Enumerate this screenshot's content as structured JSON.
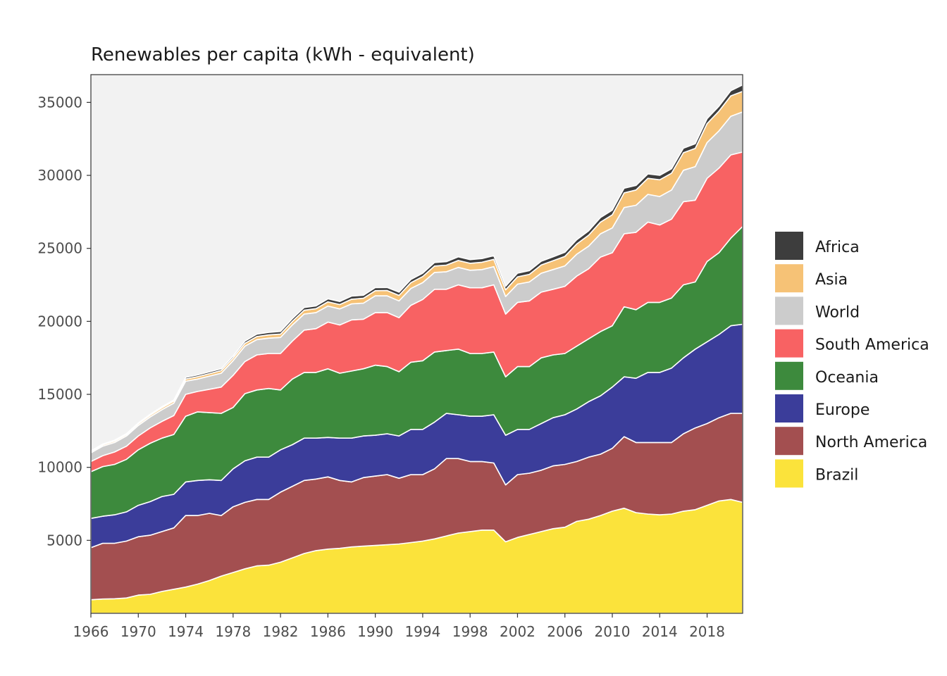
{
  "chart_data": {
    "type": "area",
    "stacked": true,
    "title": "Renewables per capita (kWh - equivalent)",
    "xlabel": "",
    "ylabel": "",
    "xlim": [
      1966,
      2021
    ],
    "ylim": [
      0,
      36900
    ],
    "x_ticks": [
      1966,
      1970,
      1974,
      1978,
      1982,
      1986,
      1990,
      1994,
      1998,
      2002,
      2006,
      2010,
      2014,
      2018
    ],
    "y_ticks": [
      5000,
      10000,
      15000,
      20000,
      25000,
      30000,
      35000
    ],
    "grid": false,
    "panel_background": "#f2f2f2",
    "legend_position": "right",
    "x": [
      1966,
      1967,
      1968,
      1969,
      1970,
      1971,
      1972,
      1973,
      1974,
      1975,
      1976,
      1977,
      1978,
      1979,
      1980,
      1981,
      1982,
      1983,
      1984,
      1985,
      1986,
      1987,
      1988,
      1989,
      1990,
      1991,
      1992,
      1993,
      1994,
      1995,
      1996,
      1997,
      1998,
      1999,
      2000,
      2001,
      2002,
      2003,
      2004,
      2005,
      2006,
      2007,
      2008,
      2009,
      2010,
      2011,
      2012,
      2013,
      2014,
      2015,
      2016,
      2017,
      2018,
      2019,
      2020,
      2021
    ],
    "series": [
      {
        "name": "Brazil",
        "color": "#fbe33b",
        "values": [
          930,
          980,
          1000,
          1050,
          1250,
          1300,
          1500,
          1650,
          1800,
          2000,
          2250,
          2550,
          2800,
          3050,
          3250,
          3300,
          3500,
          3800,
          4100,
          4300,
          4400,
          4450,
          4550,
          4600,
          4650,
          4700,
          4750,
          4850,
          4950,
          5100,
          5300,
          5500,
          5600,
          5700,
          5700,
          4900,
          5200,
          5400,
          5600,
          5800,
          5900,
          6300,
          6450,
          6700,
          7000,
          7200,
          6900,
          6800,
          6750,
          6800,
          7000,
          7100,
          7400,
          7700,
          7800,
          7600
        ]
      },
      {
        "name": "North America",
        "color": "#a34f50",
        "values": [
          3570,
          3820,
          3800,
          3900,
          4000,
          4050,
          4100,
          4200,
          4900,
          4700,
          4600,
          4150,
          4500,
          4550,
          4550,
          4500,
          4800,
          4900,
          5000,
          4900,
          4950,
          4650,
          4450,
          4700,
          4750,
          4800,
          4500,
          4650,
          4550,
          4800,
          5300,
          5100,
          4800,
          4700,
          4600,
          3900,
          4300,
          4200,
          4200,
          4300,
          4300,
          4100,
          4250,
          4200,
          4300,
          4900,
          4800,
          4900,
          4950,
          4900,
          5300,
          5600,
          5600,
          5700,
          5900,
          6100
        ]
      },
      {
        "name": "Europe",
        "color": "#3b3d9a",
        "values": [
          2000,
          1850,
          1950,
          2000,
          2150,
          2300,
          2400,
          2300,
          2300,
          2400,
          2300,
          2400,
          2600,
          2850,
          2900,
          2900,
          2900,
          2850,
          2900,
          2800,
          2700,
          2900,
          3000,
          2850,
          2800,
          2800,
          2900,
          3100,
          3100,
          3200,
          3100,
          3000,
          3100,
          3100,
          3300,
          3400,
          3100,
          3000,
          3200,
          3300,
          3400,
          3600,
          3800,
          4000,
          4200,
          4100,
          4400,
          4800,
          4800,
          5100,
          5200,
          5400,
          5600,
          5700,
          6000,
          6100
        ]
      },
      {
        "name": "Oceania",
        "color": "#3d8a3d",
        "values": [
          3200,
          3400,
          3450,
          3600,
          3800,
          4000,
          4000,
          4100,
          4500,
          4700,
          4600,
          4600,
          4200,
          4600,
          4600,
          4700,
          4100,
          4500,
          4500,
          4500,
          4700,
          4450,
          4600,
          4600,
          4800,
          4600,
          4400,
          4600,
          4700,
          4800,
          4300,
          4500,
          4300,
          4300,
          4300,
          4000,
          4300,
          4300,
          4500,
          4300,
          4200,
          4300,
          4300,
          4400,
          4200,
          4800,
          4700,
          4800,
          4800,
          4800,
          5000,
          4600,
          5500,
          5600,
          6000,
          6700
        ]
      },
      {
        "name": "South America",
        "color": "#f86263",
        "values": [
          700,
          750,
          850,
          900,
          950,
          1050,
          1150,
          1300,
          1500,
          1400,
          1600,
          1800,
          2200,
          2200,
          2400,
          2400,
          2500,
          2600,
          2900,
          3000,
          3200,
          3300,
          3500,
          3400,
          3600,
          3700,
          3700,
          3900,
          4200,
          4300,
          4200,
          4400,
          4500,
          4500,
          4600,
          4300,
          4400,
          4500,
          4500,
          4500,
          4600,
          4800,
          4800,
          5100,
          5000,
          5000,
          5300,
          5500,
          5300,
          5400,
          5700,
          5600,
          5700,
          5800,
          5700,
          5100
        ]
      },
      {
        "name": "World",
        "color": "#cccccc",
        "values": [
          600,
          650,
          650,
          700,
          720,
          750,
          800,
          850,
          900,
          850,
          900,
          950,
          1000,
          1050,
          1050,
          1050,
          1100,
          1100,
          1100,
          1100,
          1100,
          1100,
          1100,
          1100,
          1150,
          1150,
          1150,
          1150,
          1150,
          1150,
          1200,
          1200,
          1200,
          1250,
          1250,
          1200,
          1250,
          1300,
          1300,
          1350,
          1400,
          1500,
          1550,
          1600,
          1700,
          1800,
          1850,
          1900,
          1950,
          2000,
          2150,
          2300,
          2450,
          2550,
          2650,
          2750
        ]
      },
      {
        "name": "Asia",
        "color": "#f6c276",
        "values": [
          80,
          90,
          100,
          100,
          110,
          120,
          130,
          140,
          150,
          160,
          170,
          180,
          190,
          200,
          210,
          220,
          230,
          250,
          260,
          270,
          290,
          300,
          320,
          330,
          350,
          360,
          380,
          400,
          420,
          440,
          450,
          470,
          480,
          500,
          500,
          460,
          500,
          520,
          560,
          600,
          650,
          700,
          750,
          800,
          900,
          1000,
          1050,
          1100,
          1150,
          1150,
          1200,
          1250,
          1300,
          1350,
          1400,
          1400
        ]
      },
      {
        "name": "Africa",
        "color": "#3d3d3d",
        "values": [
          50,
          55,
          60,
          60,
          65,
          65,
          70,
          70,
          110,
          120,
          120,
          120,
          130,
          150,
          160,
          170,
          180,
          180,
          190,
          190,
          200,
          210,
          210,
          210,
          210,
          210,
          220,
          220,
          230,
          240,
          240,
          250,
          250,
          250,
          250,
          240,
          250,
          250,
          260,
          270,
          280,
          290,
          300,
          310,
          320,
          320,
          310,
          300,
          300,
          300,
          310,
          320,
          330,
          340,
          350,
          450
        ]
      }
    ]
  }
}
